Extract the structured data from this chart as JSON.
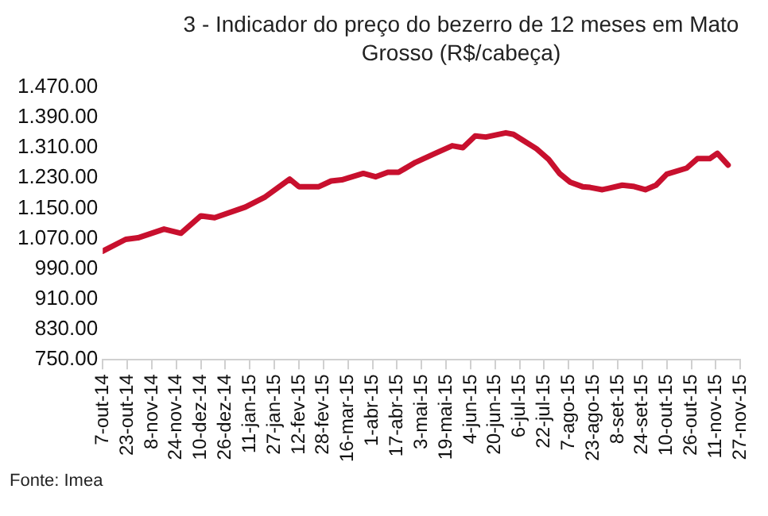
{
  "chart_data": {
    "type": "line",
    "title": "3 - Indicador do preço do bezerro de 12 meses em Mato Grosso (R$/cabeça)",
    "x": [
      "2014-10-07",
      "2014-10-22",
      "2014-10-30",
      "2014-11-16",
      "2014-11-27",
      "2014-12-10",
      "2014-12-19",
      "2015-01-08",
      "2015-01-21",
      "2015-02-06",
      "2015-02-12",
      "2015-02-25",
      "2015-03-05",
      "2015-03-12",
      "2015-03-26",
      "2015-04-03",
      "2015-04-11",
      "2015-04-18",
      "2015-04-29",
      "2015-05-12",
      "2015-05-23",
      "2015-05-30",
      "2015-06-07",
      "2015-06-14",
      "2015-06-27",
      "2015-07-02",
      "2015-07-08",
      "2015-07-17",
      "2015-07-25",
      "2015-08-01",
      "2015-08-08",
      "2015-08-16",
      "2015-08-21",
      "2015-08-29",
      "2015-09-11",
      "2015-09-18",
      "2015-09-26",
      "2015-10-03",
      "2015-10-10",
      "2015-10-23",
      "2015-10-30",
      "2015-11-07",
      "2015-11-12",
      "2015-11-19"
    ],
    "series": [
      {
        "color": "#c8102e",
        "values": [
          1037,
          1068,
          1072,
          1095,
          1084,
          1130,
          1125,
          1153,
          1180,
          1227,
          1207,
          1207,
          1222,
          1225,
          1242,
          1233,
          1245,
          1245,
          1271,
          1295,
          1315,
          1310,
          1341,
          1338,
          1349,
          1345,
          1330,
          1307,
          1279,
          1242,
          1219,
          1207,
          1205,
          1199,
          1211,
          1208,
          1199,
          1211,
          1240,
          1256,
          1281,
          1281,
          1295,
          1264
        ]
      }
    ],
    "xlim": [
      "2014-10-07",
      "2015-11-27"
    ],
    "xticks": [
      {
        "value": "2014-10-07",
        "label": "7-out-14"
      },
      {
        "value": "2014-10-23",
        "label": "23-out-14"
      },
      {
        "value": "2014-11-08",
        "label": "8-nov-14"
      },
      {
        "value": "2014-11-24",
        "label": "24-nov-14"
      },
      {
        "value": "2014-12-10",
        "label": "10-dez-14"
      },
      {
        "value": "2014-12-26",
        "label": "26-dez-14"
      },
      {
        "value": "2015-01-11",
        "label": "11-jan-15"
      },
      {
        "value": "2015-01-27",
        "label": "27-jan-15"
      },
      {
        "value": "2015-02-12",
        "label": "12-fev-15"
      },
      {
        "value": "2015-02-28",
        "label": "28-fev-15"
      },
      {
        "value": "2015-03-16",
        "label": "16-mar-15"
      },
      {
        "value": "2015-04-01",
        "label": "1-abr-15"
      },
      {
        "value": "2015-04-17",
        "label": "17-abr-15"
      },
      {
        "value": "2015-05-03",
        "label": "3-mai-15"
      },
      {
        "value": "2015-05-19",
        "label": "19-mai-15"
      },
      {
        "value": "2015-06-04",
        "label": "4-jun-15"
      },
      {
        "value": "2015-06-20",
        "label": "20-jun-15"
      },
      {
        "value": "2015-07-06",
        "label": "6-jul-15"
      },
      {
        "value": "2015-07-22",
        "label": "22-jul-15"
      },
      {
        "value": "2015-08-07",
        "label": "7-ago-15"
      },
      {
        "value": "2015-08-23",
        "label": "23-ago-15"
      },
      {
        "value": "2015-09-08",
        "label": "8-set-15"
      },
      {
        "value": "2015-09-24",
        "label": "24-set-15"
      },
      {
        "value": "2015-10-10",
        "label": "10-out-15"
      },
      {
        "value": "2015-10-26",
        "label": "26-out-15"
      },
      {
        "value": "2015-11-11",
        "label": "11-nov-15"
      },
      {
        "value": "2015-11-27",
        "label": "27-nov-15"
      }
    ],
    "ylim": [
      750,
      1470
    ],
    "yticks": [
      {
        "value": 750,
        "label": "750.00"
      },
      {
        "value": 830,
        "label": "830.00"
      },
      {
        "value": 910,
        "label": "910.00"
      },
      {
        "value": 990,
        "label": "990.00"
      },
      {
        "value": 1070,
        "label": "1.070.00"
      },
      {
        "value": 1150,
        "label": "1.150.00"
      },
      {
        "value": 1230,
        "label": "1.230.00"
      },
      {
        "value": 1310,
        "label": "1.310.00"
      },
      {
        "value": 1390,
        "label": "1.390.00"
      },
      {
        "value": 1470,
        "label": "1.470.00"
      }
    ],
    "grid": false,
    "legend": false,
    "marker": "none",
    "line_style": "solid",
    "annotations": [
      "Fonte: Imea"
    ]
  }
}
